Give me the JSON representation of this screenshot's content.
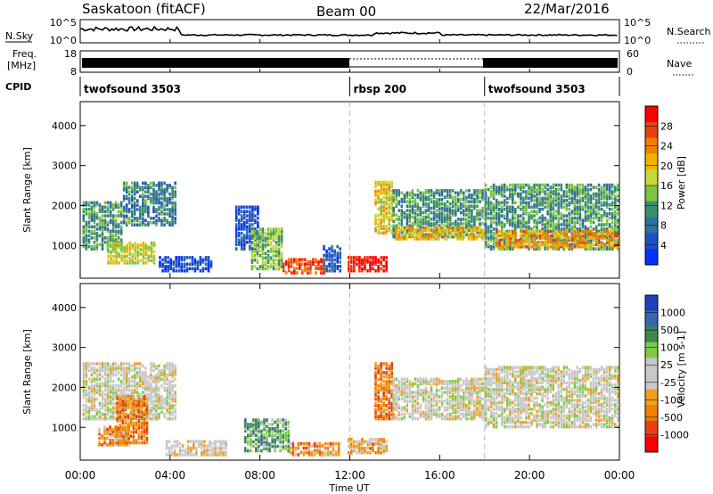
{
  "header": {
    "station": "Saskatoon (fitACF)",
    "beam": "Beam 00",
    "date": "22/Mar/2016"
  },
  "sky_panel": {
    "left_label": "N.Sky",
    "right_label": "N.Search",
    "left_ticks": [
      "10^5",
      "10^0"
    ],
    "right_ticks": [
      "10^5",
      "10^0"
    ]
  },
  "freq_panel": {
    "left_label_line1": "Freq.",
    "left_label_line2": "[MHz]",
    "right_label": "Nave",
    "left_ticks": [
      "18",
      "8"
    ],
    "right_ticks": [
      "60",
      "0"
    ]
  },
  "cpid": {
    "label": "CPID",
    "segments": [
      {
        "name": "twofsound 3503",
        "start": 0,
        "end": 12
      },
      {
        "name": "rbsp 200",
        "start": 12,
        "end": 18
      },
      {
        "name": "twofsound 3503",
        "start": 18,
        "end": 24
      }
    ]
  },
  "time_axis": {
    "title": "Time UT",
    "ticks": [
      "00:00",
      "04:00",
      "08:00",
      "12:00",
      "16:00",
      "20:00",
      "00:00"
    ]
  },
  "chart_data": [
    {
      "type": "heatmap",
      "name": "power",
      "ylabel": "Slant Range [km]",
      "yticks": [
        "1000",
        "2000",
        "3000",
        "4000"
      ],
      "ylim": [
        180,
        4600
      ],
      "xlim": [
        0,
        24
      ],
      "colorbar": {
        "label": "Power [dB]",
        "ticks": [
          "4",
          "8",
          "12",
          "16",
          "20",
          "24",
          "28"
        ],
        "colors": [
          "#0033ff",
          "#1f4fc4",
          "#2f6fa0",
          "#3a8f6a",
          "#7dc242",
          "#c8d93a",
          "#f0b400",
          "#f08000",
          "#e84010",
          "#ff0000"
        ]
      },
      "regions": [
        {
          "t0": 0.1,
          "t1": 1.9,
          "r0": 900,
          "r1": 2100,
          "level": 0.35
        },
        {
          "t0": 1.9,
          "t1": 4.2,
          "r0": 1500,
          "r1": 2600,
          "level": 0.3
        },
        {
          "t0": 1.2,
          "t1": 3.3,
          "r0": 550,
          "r1": 1050,
          "level": 0.55
        },
        {
          "t0": 3.5,
          "t1": 5.9,
          "r0": 350,
          "r1": 700,
          "level": 0.1
        },
        {
          "t0": 6.9,
          "t1": 7.9,
          "r0": 900,
          "r1": 2000,
          "level": 0.15
        },
        {
          "t0": 7.6,
          "t1": 9.0,
          "r0": 400,
          "r1": 1400,
          "level": 0.45
        },
        {
          "t0": 9.0,
          "t1": 10.8,
          "r0": 300,
          "r1": 650,
          "level": 0.85
        },
        {
          "t0": 10.8,
          "t1": 11.6,
          "r0": 350,
          "r1": 1000,
          "level": 0.2
        },
        {
          "t0": 11.9,
          "t1": 13.6,
          "r0": 350,
          "r1": 700,
          "level": 0.95
        },
        {
          "t0": 13.1,
          "t1": 13.9,
          "r0": 1300,
          "r1": 2600,
          "level": 0.6
        },
        {
          "t0": 13.9,
          "t1": 18.0,
          "r0": 1200,
          "r1": 2400,
          "level": 0.35
        },
        {
          "t0": 14.0,
          "t1": 18.0,
          "r0": 1150,
          "r1": 1450,
          "level": 0.65
        },
        {
          "t0": 18.0,
          "t1": 24.0,
          "r0": 900,
          "r1": 2500,
          "level": 0.35
        },
        {
          "t0": 18.5,
          "t1": 24.0,
          "r0": 950,
          "r1": 1350,
          "level": 0.7
        }
      ]
    },
    {
      "type": "heatmap",
      "name": "velocity",
      "ylabel": "Slant Range [km]",
      "yticks": [
        "1000",
        "2000",
        "3000",
        "4000"
      ],
      "ylim": [
        180,
        4600
      ],
      "xlim": [
        0,
        24
      ],
      "colorbar": {
        "label": "Velocity [m s-1]",
        "ticks": [
          "1000",
          "500",
          "100",
          "25",
          "-25",
          "-100",
          "-500",
          "-1000"
        ],
        "colors": [
          "#1f3fbf",
          "#3a66b0",
          "#3a8a50",
          "#7ecc44",
          "#c8c8c8",
          "#c8c8c8",
          "#f0a020",
          "#f08000",
          "#e84010",
          "#ff0000"
        ]
      },
      "regions": [
        {
          "t0": 0.1,
          "t1": 4.2,
          "r0": 1200,
          "r1": 2600,
          "level": 0.5
        },
        {
          "t0": 1.6,
          "t1": 3.0,
          "r0": 600,
          "r1": 1800,
          "level": 0.75
        },
        {
          "t0": 0.8,
          "t1": 2.2,
          "r0": 550,
          "r1": 1000,
          "level": 0.7
        },
        {
          "t0": 3.8,
          "t1": 6.5,
          "r0": 300,
          "r1": 650,
          "level": 0.55
        },
        {
          "t0": 7.3,
          "t1": 9.3,
          "r0": 400,
          "r1": 1200,
          "level": 0.3
        },
        {
          "t0": 9.3,
          "t1": 11.5,
          "r0": 300,
          "r1": 600,
          "level": 0.7
        },
        {
          "t0": 11.9,
          "t1": 13.6,
          "r0": 350,
          "r1": 700,
          "level": 0.66
        },
        {
          "t0": 13.1,
          "t1": 13.9,
          "r0": 1200,
          "r1": 2600,
          "level": 0.75
        },
        {
          "t0": 13.9,
          "t1": 18.0,
          "r0": 1200,
          "r1": 2200,
          "level": 0.5
        },
        {
          "t0": 18.0,
          "t1": 24.0,
          "r0": 1000,
          "r1": 2500,
          "level": 0.5
        }
      ]
    }
  ]
}
